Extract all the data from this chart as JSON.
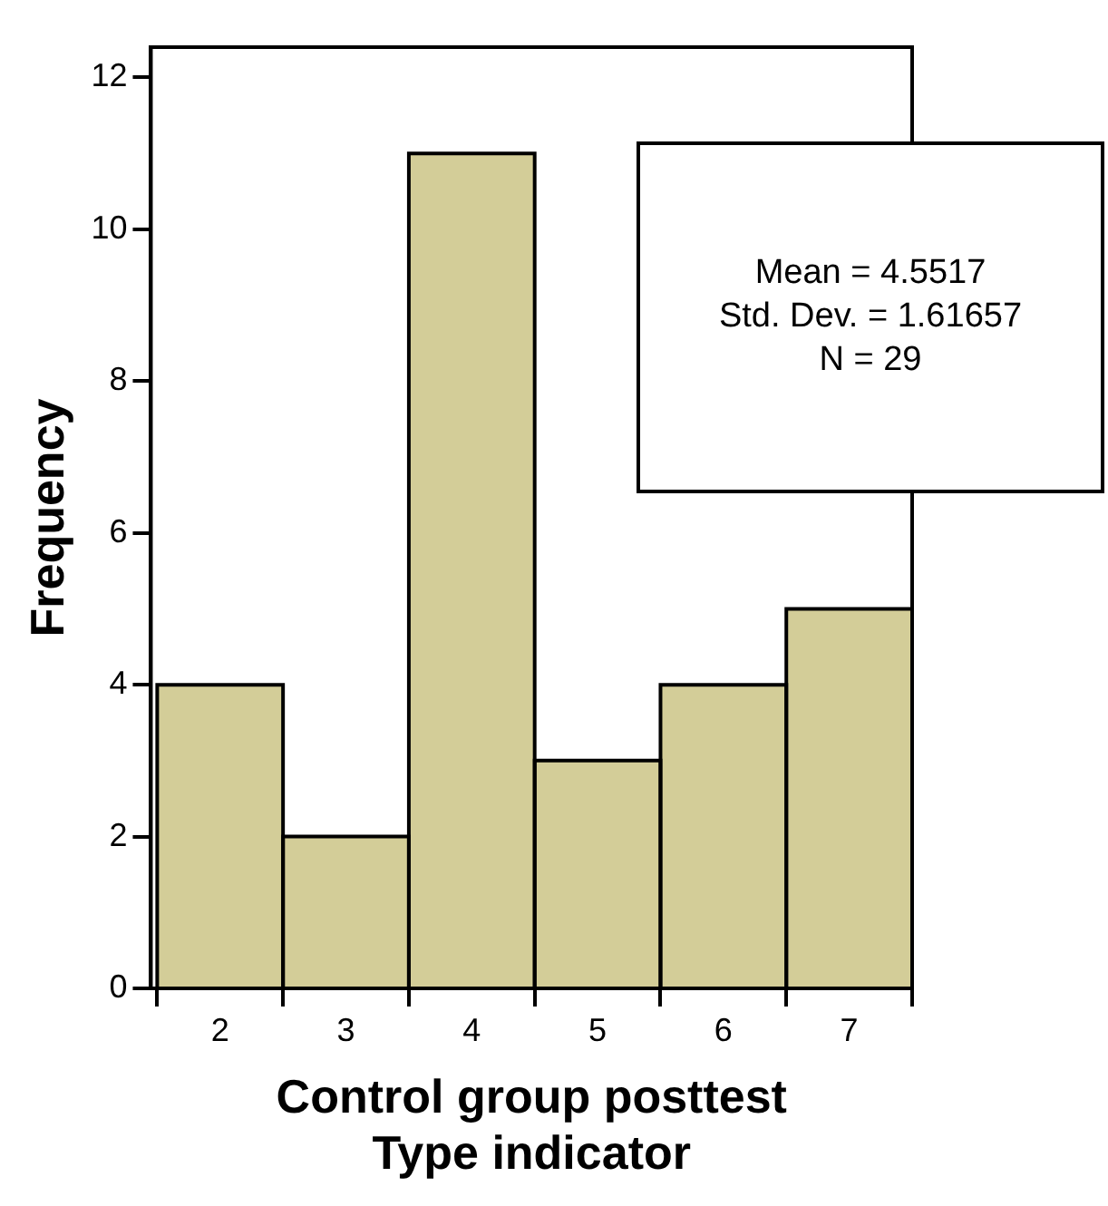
{
  "chart_data": {
    "type": "histogram",
    "bins": [
      1.5,
      2.5,
      3.5,
      4.5,
      5.5,
      6.5,
      7.5
    ],
    "values": [
      4,
      2,
      11,
      3,
      4,
      5
    ],
    "color": "#d3cd98",
    "xlabel": "Control group posttest\nType indicator",
    "ylabel": "Frequency",
    "xlim": [
      1.45,
      7.5
    ],
    "xticks": [
      2,
      3,
      4,
      5,
      6,
      7
    ],
    "ylim": [
      0,
      12.4
    ],
    "yticks": [
      0,
      2,
      4,
      6,
      8,
      10,
      12
    ],
    "grid": false,
    "legend": false,
    "annotations": [
      "Mean = 4.5517\nStd. Dev. = 1.61657\nN = 29"
    ]
  }
}
